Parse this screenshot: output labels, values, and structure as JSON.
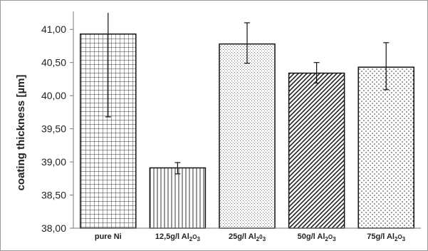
{
  "chart_data": {
    "type": "bar",
    "title": "",
    "xlabel": "",
    "ylabel": "coating thickness [µm]",
    "ylim": [
      38.0,
      41.25
    ],
    "yticks": [
      "38,00",
      "38,50",
      "39,00",
      "39,50",
      "40,00",
      "40,50",
      "41,00"
    ],
    "grid": false,
    "legend": "none",
    "categories": [
      {
        "label": "pure Ni",
        "base": "pure Ni",
        "subscripts": []
      },
      {
        "label": "12,5g/l Al2O3",
        "base": "12,5g/l Al",
        "subscripts": [
          "2",
          "O",
          "3"
        ]
      },
      {
        "label": "25g/l Al2O3",
        "base": "25g/l Al",
        "subscripts": [
          "2",
          "0",
          "3"
        ]
      },
      {
        "label": "50g/l Al2O3",
        "base": "50g/l Al",
        "subscripts": [
          "2",
          "O",
          "3"
        ]
      },
      {
        "label": "75g/l Al2O3",
        "base": "75g/l Al",
        "subscripts": [
          "2",
          "O",
          "3"
        ]
      }
    ],
    "values": [
      40.93,
      38.91,
      40.78,
      40.34,
      40.43
    ],
    "error_low": [
      39.68,
      38.82,
      40.49,
      40.19,
      40.09
    ],
    "error_high": [
      41.25,
      38.99,
      41.1,
      40.5,
      40.8
    ],
    "patterns": [
      "grid",
      "vertical-lines",
      "dots",
      "diagonal-lines",
      "dashes"
    ],
    "colors": {
      "bar_stroke": "#111111",
      "pattern": "#333333",
      "axis": "#777777"
    }
  }
}
